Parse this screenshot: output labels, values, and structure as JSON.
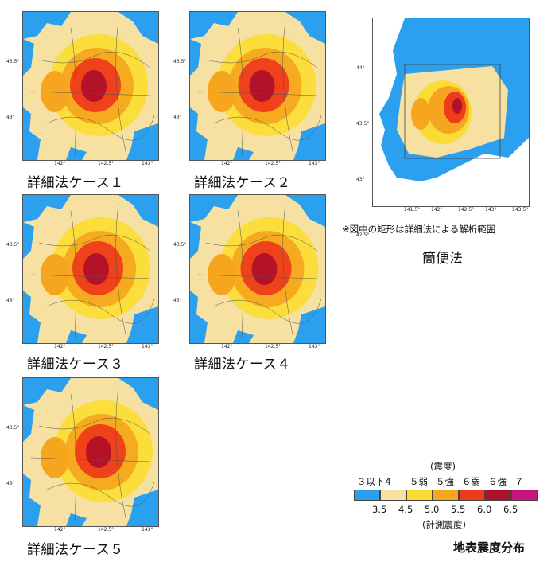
{
  "panels": [
    {
      "caption": "詳細法ケース１",
      "ticks_x": [
        "142°",
        "142.5°",
        "143°"
      ],
      "ticks_y": [
        "43.5°",
        "43°"
      ]
    },
    {
      "caption": "詳細法ケース２",
      "ticks_x": [
        "142°",
        "142.5°",
        "143°"
      ],
      "ticks_y": [
        "43.5°",
        "43°"
      ]
    },
    {
      "caption": "詳細法ケース３",
      "ticks_x": [
        "142°",
        "142.5°",
        "143°"
      ],
      "ticks_y": [
        "43.5°",
        "43°"
      ]
    },
    {
      "caption": "詳細法ケース４",
      "ticks_x": [
        "142°",
        "142.5°",
        "143°"
      ],
      "ticks_y": [
        "43.5°",
        "43°"
      ]
    },
    {
      "caption": "詳細法ケース５",
      "ticks_x": [
        "142°",
        "142.5°",
        "143°"
      ],
      "ticks_y": [
        "43.5°",
        "43°"
      ]
    }
  ],
  "simple": {
    "caption": "簡便法",
    "note": "※図中の矩形は詳細法による解析範囲",
    "ticks_x": [
      "141.5°",
      "142°",
      "142.5°",
      "143°",
      "143.5°"
    ],
    "ticks_y": [
      "44°",
      "43.5°",
      "43°",
      "42.5°"
    ]
  },
  "legend": {
    "header": "(震度)",
    "intensity_labels": [
      "３以下",
      "４",
      "５弱",
      "５強",
      "６弱",
      "６強",
      "７"
    ],
    "instrument_labels": [
      "3.5",
      "4.5",
      "5.0",
      "5.5",
      "6.0",
      "6.5"
    ],
    "footer": "(計測震度)",
    "title": "地表震度分布",
    "colors": [
      "#2aa0ee",
      "#f6e0a2",
      "#fbdc36",
      "#f6a61e",
      "#ee3c1a",
      "#b0102a",
      "#c6137d"
    ]
  }
}
